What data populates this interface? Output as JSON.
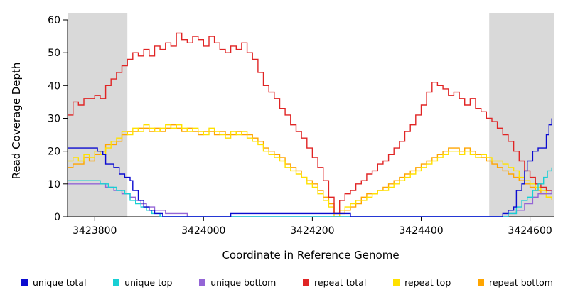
{
  "chart_data": {
    "type": "line",
    "title": "",
    "xlabel": "Coordinate in Reference Genome",
    "ylabel": "Read Coverage Depth",
    "xlim": [
      3423750,
      3424645
    ],
    "ylim": [
      0,
      60
    ],
    "xticks": [
      3423800,
      3424000,
      3424200,
      3424400,
      3424600
    ],
    "xtick_labels": [
      "3423800",
      "3424000",
      "3424200",
      "3424400",
      "3424600"
    ],
    "yticks": [
      0,
      10,
      20,
      30,
      40,
      50,
      60
    ],
    "grid": false,
    "legend_position": "bottom",
    "plot_bg": "#ffffff",
    "shaded_regions": [
      {
        "x0": 3423750,
        "x1": 3423860,
        "color": "#d9d9d9"
      },
      {
        "x0": 3424525,
        "x1": 3424645,
        "color": "#d9d9d9"
      }
    ],
    "series": [
      {
        "name": "unique total",
        "color": "#0b0bd0",
        "z": 6,
        "points": [
          [
            3423750,
            21
          ],
          [
            3423800,
            21
          ],
          [
            3423805,
            20
          ],
          [
            3423815,
            19
          ],
          [
            3423820,
            16
          ],
          [
            3423835,
            15
          ],
          [
            3423845,
            13
          ],
          [
            3423855,
            12
          ],
          [
            3423865,
            11
          ],
          [
            3423870,
            8
          ],
          [
            3423880,
            5
          ],
          [
            3423890,
            3
          ],
          [
            3423900,
            2
          ],
          [
            3423910,
            1
          ],
          [
            3423925,
            0
          ],
          [
            3424040,
            0
          ],
          [
            3424050,
            1
          ],
          [
            3424260,
            1
          ],
          [
            3424270,
            0
          ],
          [
            3424540,
            0
          ],
          [
            3424550,
            1
          ],
          [
            3424560,
            2
          ],
          [
            3424570,
            3
          ],
          [
            3424575,
            8
          ],
          [
            3424585,
            10
          ],
          [
            3424590,
            14
          ],
          [
            3424595,
            17
          ],
          [
            3424605,
            20
          ],
          [
            3424615,
            21
          ],
          [
            3424625,
            21
          ],
          [
            3424630,
            25
          ],
          [
            3424635,
            28
          ],
          [
            3424640,
            30
          ]
        ]
      },
      {
        "name": "unique top",
        "color": "#18cfd4",
        "z": 5,
        "points": [
          [
            3423750,
            11
          ],
          [
            3423800,
            11
          ],
          [
            3423810,
            10
          ],
          [
            3423825,
            9
          ],
          [
            3423840,
            8
          ],
          [
            3423855,
            7
          ],
          [
            3423865,
            5
          ],
          [
            3423875,
            4
          ],
          [
            3423885,
            3
          ],
          [
            3423895,
            2
          ],
          [
            3423905,
            1
          ],
          [
            3423920,
            0
          ],
          [
            3424550,
            0
          ],
          [
            3424560,
            1
          ],
          [
            3424575,
            3
          ],
          [
            3424585,
            5
          ],
          [
            3424595,
            6
          ],
          [
            3424605,
            8
          ],
          [
            3424615,
            10
          ],
          [
            3424625,
            12
          ],
          [
            3424632,
            14
          ],
          [
            3424640,
            15
          ]
        ]
      },
      {
        "name": "unique bottom",
        "color": "#9465d6",
        "z": 4,
        "points": [
          [
            3423750,
            10
          ],
          [
            3423810,
            10
          ],
          [
            3423820,
            9
          ],
          [
            3423835,
            8
          ],
          [
            3423850,
            7
          ],
          [
            3423865,
            6
          ],
          [
            3423875,
            5
          ],
          [
            3423885,
            4
          ],
          [
            3423895,
            3
          ],
          [
            3423910,
            2
          ],
          [
            3423930,
            1
          ],
          [
            3423960,
            1
          ],
          [
            3423970,
            0
          ],
          [
            3424545,
            0
          ],
          [
            3424560,
            1
          ],
          [
            3424575,
            2
          ],
          [
            3424590,
            4
          ],
          [
            3424605,
            6
          ],
          [
            3424615,
            7
          ],
          [
            3424630,
            7
          ],
          [
            3424640,
            8
          ]
        ]
      },
      {
        "name": "repeat total",
        "color": "#e02424",
        "z": 3,
        "x_start": 3423750,
        "x_step": 10,
        "values": [
          31,
          35,
          34,
          36,
          36,
          37,
          36,
          40,
          42,
          44,
          46,
          48,
          50,
          49,
          51,
          49,
          52,
          51,
          53,
          52,
          56,
          54,
          53,
          55,
          54,
          52,
          55,
          53,
          51,
          50,
          52,
          51,
          53,
          50,
          48,
          44,
          40,
          38,
          36,
          33,
          31,
          28,
          26,
          24,
          21,
          18,
          15,
          11,
          6,
          1,
          5,
          7,
          8,
          10,
          11,
          13,
          14,
          16,
          17,
          19,
          21,
          23,
          26,
          28,
          31,
          34,
          38,
          41,
          40,
          39,
          37,
          38,
          36,
          34,
          36,
          33,
          32,
          30,
          29,
          27,
          25,
          23,
          20,
          17,
          14,
          12,
          10,
          9,
          8,
          7
        ]
      },
      {
        "name": "repeat top",
        "color": "#ffe100",
        "z": 2,
        "x_start": 3423750,
        "x_step": 10,
        "values": [
          17,
          18,
          17,
          19,
          18,
          20,
          19,
          21,
          23,
          24,
          26,
          25,
          27,
          26,
          28,
          27,
          26,
          27,
          28,
          27,
          28,
          27,
          26,
          27,
          26,
          25,
          27,
          26,
          25,
          24,
          26,
          25,
          26,
          24,
          23,
          22,
          20,
          19,
          18,
          17,
          15,
          14,
          13,
          12,
          10,
          9,
          7,
          5,
          3,
          0,
          2,
          3,
          4,
          5,
          5,
          6,
          7,
          8,
          8,
          9,
          10,
          11,
          12,
          13,
          14,
          15,
          16,
          17,
          18,
          19,
          20,
          20,
          19,
          20,
          19,
          18,
          19,
          18,
          17,
          17,
          16,
          15,
          14,
          12,
          11,
          10,
          9,
          8,
          6,
          5
        ]
      },
      {
        "name": "repeat bottom",
        "color": "#ffa500",
        "z": 1,
        "x_start": 3423750,
        "x_step": 10,
        "values": [
          15,
          16,
          16,
          18,
          17,
          19,
          20,
          22,
          22,
          23,
          25,
          26,
          26,
          27,
          27,
          26,
          27,
          26,
          27,
          28,
          27,
          26,
          27,
          26,
          25,
          26,
          26,
          25,
          26,
          25,
          25,
          26,
          25,
          25,
          24,
          23,
          21,
          20,
          19,
          18,
          16,
          15,
          14,
          12,
          11,
          10,
          8,
          6,
          4,
          1,
          1,
          2,
          3,
          4,
          6,
          7,
          7,
          8,
          9,
          10,
          11,
          12,
          13,
          14,
          15,
          16,
          17,
          18,
          19,
          20,
          21,
          21,
          20,
          21,
          20,
          19,
          18,
          17,
          16,
          15,
          14,
          13,
          12,
          11,
          10,
          9,
          8,
          7,
          6,
          5
        ]
      }
    ]
  }
}
